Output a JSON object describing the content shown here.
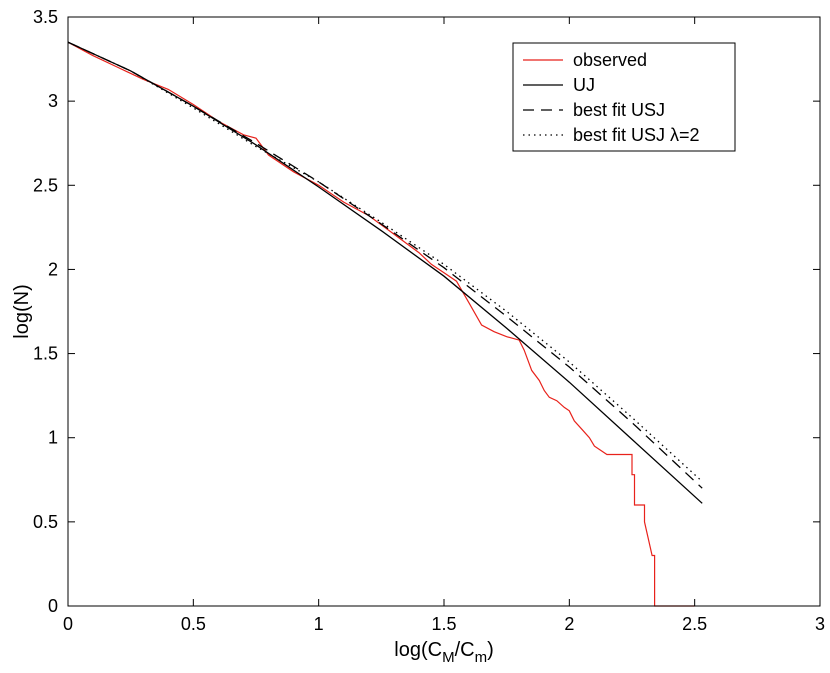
{
  "chart_data": {
    "type": "line",
    "xlabel": "log(C",
    "xlabel_sub1": "M",
    "xlabel_mid": "/C",
    "xlabel_sub2": "m",
    "xlabel_end": ")",
    "ylabel": "log(N)",
    "xlim": [
      0,
      3
    ],
    "ylim": [
      0,
      3.5
    ],
    "x_ticks": [
      "0",
      "0.5",
      "1",
      "1.5",
      "2",
      "2.5",
      "3"
    ],
    "y_ticks": [
      "0",
      "0.5",
      "1",
      "1.5",
      "2",
      "2.5",
      "3",
      "3.5"
    ],
    "grid": false,
    "legend_position": "top-right",
    "series": [
      {
        "name": "observed",
        "color": "#e8221b",
        "style": "solid",
        "x": [
          0,
          0.1,
          0.2,
          0.3,
          0.4,
          0.5,
          0.6,
          0.7,
          0.75,
          0.8,
          0.9,
          1.0,
          1.1,
          1.2,
          1.3,
          1.4,
          1.45,
          1.5,
          1.55,
          1.6,
          1.65,
          1.7,
          1.75,
          1.8,
          1.82,
          1.85,
          1.88,
          1.9,
          1.92,
          1.95,
          1.98,
          2.0,
          2.02,
          2.05,
          2.08,
          2.1,
          2.15,
          2.2,
          2.25,
          2.25,
          2.26,
          2.26,
          2.3,
          2.3,
          2.33,
          2.34,
          2.34,
          2.5
        ],
        "y": [
          3.35,
          3.27,
          3.2,
          3.13,
          3.07,
          2.98,
          2.88,
          2.8,
          2.78,
          2.68,
          2.58,
          2.5,
          2.4,
          2.32,
          2.21,
          2.1,
          2.03,
          1.98,
          1.93,
          1.8,
          1.67,
          1.63,
          1.6,
          1.58,
          1.52,
          1.4,
          1.34,
          1.28,
          1.24,
          1.22,
          1.18,
          1.16,
          1.1,
          1.05,
          1.0,
          0.95,
          0.9,
          0.9,
          0.9,
          0.78,
          0.78,
          0.6,
          0.6,
          0.5,
          0.3,
          0.3,
          0.0,
          0.0
        ]
      },
      {
        "name": "UJ",
        "color": "#000000",
        "style": "solid",
        "x": [
          0,
          0.25,
          0.5,
          0.75,
          1.0,
          1.25,
          1.5,
          1.75,
          2.0,
          2.25,
          2.53
        ],
        "y": [
          3.35,
          3.18,
          2.97,
          2.74,
          2.49,
          2.23,
          1.96,
          1.65,
          1.33,
          0.99,
          0.61
        ]
      },
      {
        "name": "best fit USJ",
        "color": "#000000",
        "style": "dashed",
        "x": [
          0,
          0.25,
          0.5,
          0.75,
          1.0,
          1.25,
          1.5,
          1.75,
          2.0,
          2.25,
          2.53
        ],
        "y": [
          3.35,
          3.18,
          2.97,
          2.75,
          2.52,
          2.27,
          2.01,
          1.72,
          1.42,
          1.09,
          0.7
        ]
      },
      {
        "name": "best fit USJ λ=2",
        "color": "#000000",
        "style": "dotted",
        "x": [
          0,
          0.25,
          0.5,
          0.75,
          1.0,
          1.25,
          1.5,
          1.75,
          2.0,
          2.25,
          2.53
        ],
        "y": [
          3.35,
          3.18,
          2.96,
          2.73,
          2.52,
          2.28,
          2.03,
          1.75,
          1.45,
          1.12,
          0.74
        ]
      }
    ]
  }
}
